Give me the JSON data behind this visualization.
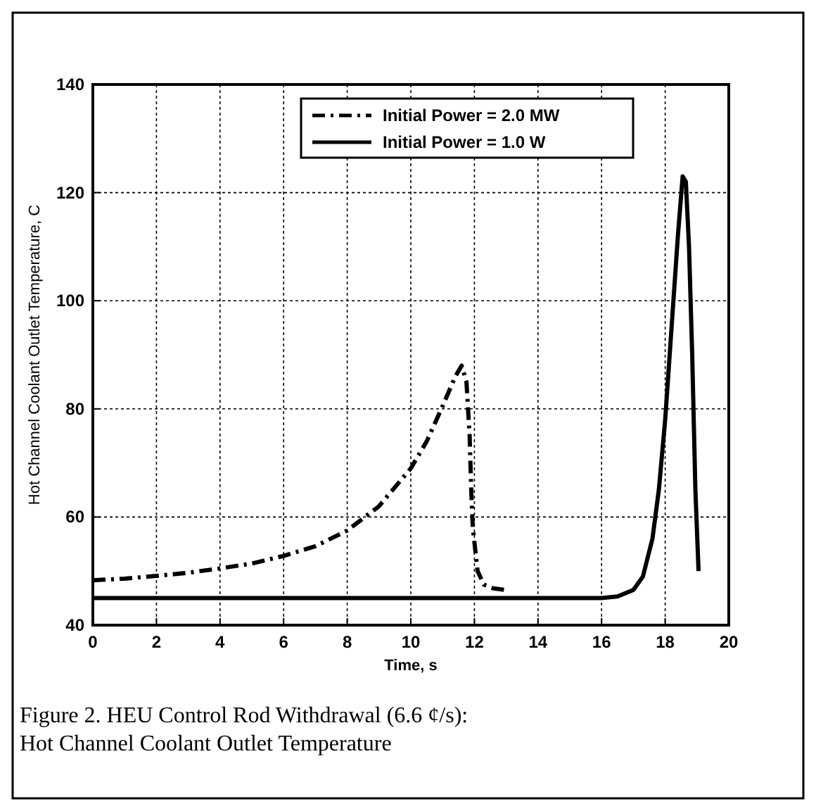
{
  "chart_data": {
    "type": "line",
    "xlabel": "Time, s",
    "ylabel": "Hot Channel Coolant Outlet Temperature, C",
    "xlim": [
      0,
      20
    ],
    "xticks": [
      0,
      2,
      4,
      6,
      8,
      10,
      12,
      14,
      16,
      18,
      20
    ],
    "ylim": [
      40,
      140
    ],
    "yticks": [
      40,
      60,
      80,
      100,
      120,
      140
    ],
    "grid": true,
    "legend": "top",
    "annotations": [
      "Figure 2.  HEU Control Rod Withdrawal (6.6 ¢/s):\nHot Channel Coolant Outlet Temperature"
    ],
    "series": [
      {
        "name": "Initial Power = 2.0 MW",
        "color": "#000000",
        "line_style": "dashed",
        "x": [
          0,
          1,
          2,
          3,
          4,
          5,
          6,
          7,
          8,
          9,
          10,
          10.5,
          11,
          11.4,
          11.6,
          11.75,
          11.85,
          11.9,
          11.95,
          12.1,
          12.3,
          12.6,
          13
        ],
        "values": [
          48.3,
          48.6,
          49.1,
          49.7,
          50.5,
          51.4,
          52.8,
          54.6,
          57.5,
          62,
          69,
          74,
          80.5,
          86,
          88,
          85,
          75,
          65,
          58,
          50,
          47.5,
          46.8,
          46.5
        ]
      },
      {
        "name": "Initial Power = 1.0  W",
        "color": "#000000",
        "line_style": "solid",
        "x": [
          0,
          16,
          16.5,
          17,
          17.3,
          17.6,
          17.8,
          18,
          18.2,
          18.4,
          18.55,
          18.65,
          18.75,
          18.85,
          18.95,
          19.05
        ],
        "values": [
          45,
          45,
          45.3,
          46.5,
          49,
          56,
          65,
          78,
          95,
          112,
          123,
          122,
          110,
          90,
          65,
          50
        ]
      }
    ]
  }
}
